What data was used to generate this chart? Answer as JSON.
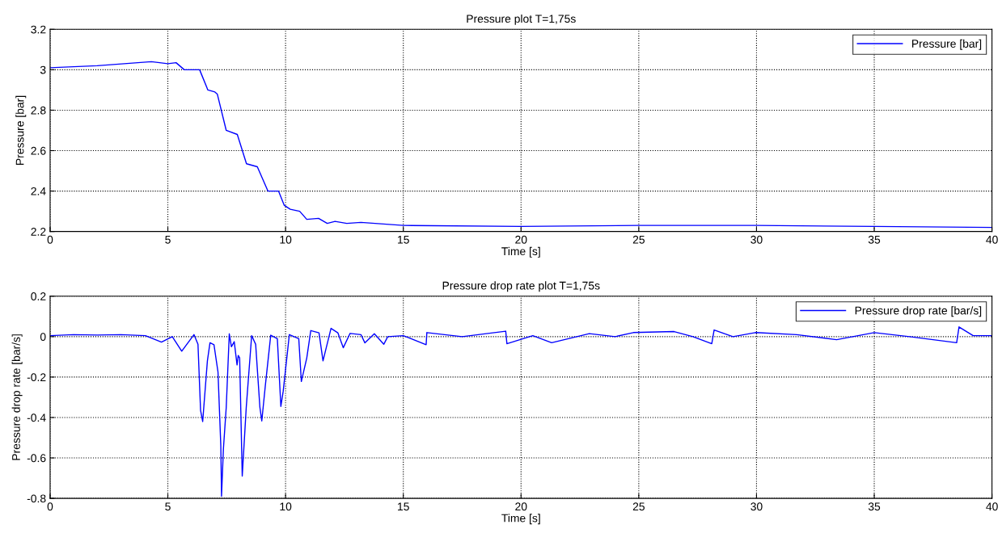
{
  "chart_data": [
    {
      "type": "line",
      "title": "Pressure plot T=1,75s",
      "xlabel": "Time [s]",
      "ylabel": "Pressure [bar]",
      "xlim": [
        0,
        40
      ],
      "ylim": [
        2.2,
        3.2
      ],
      "xticks": [
        0,
        5,
        10,
        15,
        20,
        25,
        30,
        35,
        40
      ],
      "yticks": [
        2.2,
        2.4,
        2.6,
        2.8,
        3,
        3.2
      ],
      "grid": true,
      "legend": "top right",
      "line_style": "solid",
      "series": [
        {
          "name": "Pressure [bar]",
          "color": "#0000ff",
          "x": [
            0,
            2,
            4.3,
            5,
            5.35,
            5.7,
            6.35,
            6.7,
            7.0,
            7.1,
            7.48,
            7.95,
            8.34,
            8.8,
            9.25,
            9.7,
            9.94,
            10.2,
            10.6,
            10.9,
            11.4,
            11.77,
            12.1,
            12.6,
            13.2,
            15,
            20,
            25,
            30,
            35,
            40
          ],
          "values": [
            3.01,
            3.02,
            3.04,
            3.03,
            3.035,
            3.0,
            3.0,
            2.9,
            2.89,
            2.88,
            2.7,
            2.68,
            2.535,
            2.52,
            2.4,
            2.4,
            2.33,
            2.31,
            2.3,
            2.26,
            2.265,
            2.24,
            2.25,
            2.24,
            2.245,
            2.23,
            2.225,
            2.23,
            2.23,
            2.225,
            2.22
          ]
        }
      ]
    },
    {
      "type": "line",
      "title": "Pressure drop rate plot T=1,75s",
      "xlabel": "Time [s]",
      "ylabel": "Pressure drop rate [bar/s]",
      "xlim": [
        0,
        40
      ],
      "ylim": [
        -0.8,
        0.2
      ],
      "xticks": [
        0,
        5,
        10,
        15,
        20,
        25,
        30,
        35,
        40
      ],
      "yticks": [
        -0.8,
        -0.6,
        -0.4,
        -0.2,
        0,
        0.2
      ],
      "grid": true,
      "legend": "top right",
      "line_style": "solid",
      "series": [
        {
          "name": "Pressure drop rate [bar/s]",
          "color": "#0000ff",
          "x": [
            0,
            1,
            2,
            3,
            4.05,
            4.73,
            5.19,
            5.59,
            6.11,
            6.28,
            6.39,
            6.48,
            6.68,
            6.79,
            6.96,
            7.13,
            7.25,
            7.28,
            7.36,
            7.48,
            7.61,
            7.7,
            7.82,
            7.94,
            7.99,
            8.05,
            8.16,
            8.33,
            8.56,
            8.73,
            8.91,
            8.99,
            9.14,
            9.37,
            9.65,
            9.8,
            9.9,
            10.16,
            10.56,
            10.67,
            10.9,
            11.07,
            11.42,
            11.59,
            11.93,
            12.22,
            12.45,
            12.74,
            13.2,
            13.37,
            13.77,
            14.17,
            14.34,
            15.0,
            15.97,
            16.0,
            17.5,
            19.35,
            19.4,
            20.5,
            21.3,
            22.9,
            24.0,
            24.77,
            26.5,
            27.3,
            28.1,
            28.2,
            29.0,
            29.95,
            31.7,
            33.4,
            35.0,
            36.5,
            38.5,
            38.6,
            39.2,
            40
          ],
          "values": [
            0.005,
            0.01,
            0.008,
            0.01,
            0.005,
            -0.027,
            0,
            -0.072,
            0.01,
            -0.038,
            -0.365,
            -0.42,
            -0.12,
            -0.03,
            -0.04,
            -0.175,
            -0.54,
            -0.79,
            -0.556,
            -0.35,
            0.014,
            -0.05,
            -0.025,
            -0.14,
            -0.093,
            -0.105,
            -0.69,
            -0.35,
            0.005,
            -0.038,
            -0.35,
            -0.417,
            -0.243,
            0.007,
            -0.01,
            -0.345,
            -0.27,
            0.01,
            -0.01,
            -0.222,
            -0.106,
            0.03,
            0.019,
            -0.12,
            0.041,
            0.019,
            -0.055,
            0.016,
            0.01,
            -0.031,
            0.014,
            -0.038,
            0,
            0.005,
            -0.04,
            0.02,
            0,
            0.027,
            -0.035,
            0.005,
            -0.03,
            0.015,
            0,
            0.02,
            0.025,
            0,
            -0.035,
            0.033,
            0,
            0.02,
            0.01,
            -0.015,
            0.02,
            0,
            -0.03,
            0.048,
            0.005,
            0.005
          ]
        }
      ]
    }
  ]
}
